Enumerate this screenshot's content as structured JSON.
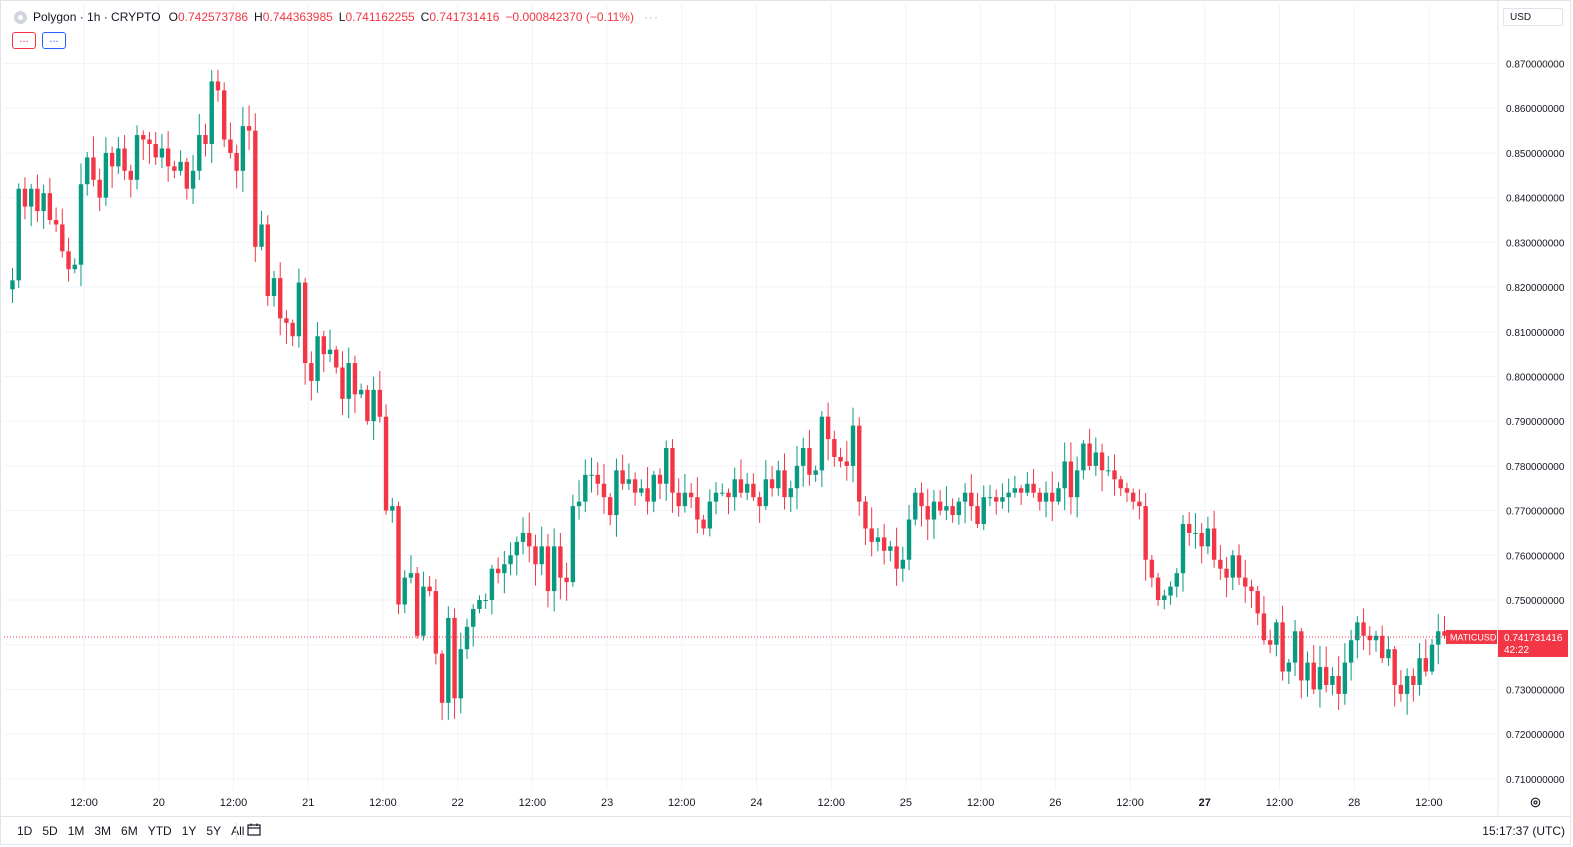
{
  "header": {
    "title": "Polygon · 1h · CRYPTO",
    "o_label": "O",
    "o_value": "0.742573786",
    "h_label": "H",
    "h_value": "0.744363985",
    "l_label": "L",
    "l_value": "0.741162255",
    "c_label": "C",
    "c_value": "0.741731416",
    "change": "−0.000842370 (−0.11%)",
    "more": "···"
  },
  "indicators": {
    "btn1": "...",
    "btn2": "...",
    "btn1_color": "#f23645",
    "btn2_color": "#2962ff"
  },
  "currency": "USD",
  "price_label": {
    "symbol": "MATICUSD",
    "price": "0.741731416",
    "countdown": "42:22",
    "color": "#f23645"
  },
  "time_ranges": [
    "1D",
    "5D",
    "1M",
    "3M",
    "6M",
    "YTD",
    "1Y",
    "5Y",
    "All"
  ],
  "clock": "15:17:37 (UTC)",
  "icons": {
    "calendar": "calendar-goto-icon",
    "settings": "settings-gear-icon",
    "symbol": "polygon-logo-icon"
  },
  "colors": {
    "up": "#089981",
    "down": "#f23645",
    "grid": "#f0f3fa"
  },
  "chart_data": {
    "type": "candlestick",
    "title": "Polygon · 1h · CRYPTO",
    "ylim": [
      0.7075,
      0.8775
    ],
    "y_ticks": [
      "0.710000000",
      "0.720000000",
      "0.730000000",
      "0.740000000",
      "0.750000000",
      "0.760000000",
      "0.770000000",
      "0.780000000",
      "0.790000000",
      "0.800000000",
      "0.810000000",
      "0.820000000",
      "0.830000000",
      "0.840000000",
      "0.850000000",
      "0.860000000",
      "0.870000000"
    ],
    "x_ticks": [
      {
        "label": "12:00",
        "hour": 11.5,
        "bold": false
      },
      {
        "label": "20",
        "hour": 23.5,
        "bold": false
      },
      {
        "label": "12:00",
        "hour": 35.5,
        "bold": false
      },
      {
        "label": "21",
        "hour": 47.5,
        "bold": false
      },
      {
        "label": "12:00",
        "hour": 59.5,
        "bold": false
      },
      {
        "label": "22",
        "hour": 71.5,
        "bold": false
      },
      {
        "label": "12:00",
        "hour": 83.5,
        "bold": false
      },
      {
        "label": "23",
        "hour": 95.5,
        "bold": false
      },
      {
        "label": "12:00",
        "hour": 107.5,
        "bold": false
      },
      {
        "label": "24",
        "hour": 119.5,
        "bold": false
      },
      {
        "label": "12:00",
        "hour": 131.5,
        "bold": false
      },
      {
        "label": "25",
        "hour": 143.5,
        "bold": false
      },
      {
        "label": "12:00",
        "hour": 155.5,
        "bold": false
      },
      {
        "label": "26",
        "hour": 167.5,
        "bold": false
      },
      {
        "label": "12:00",
        "hour": 179.5,
        "bold": false
      },
      {
        "label": "27",
        "hour": 191.5,
        "bold": true
      },
      {
        "label": "12:00",
        "hour": 203.5,
        "bold": false
      },
      {
        "label": "28",
        "hour": 215.5,
        "bold": false
      },
      {
        "label": "12:00",
        "hour": 227.5,
        "bold": false
      }
    ],
    "last_price": 0.741731416,
    "closes": [
      0.8215,
      0.842,
      0.838,
      0.842,
      0.837,
      0.841,
      0.835,
      0.834,
      0.828,
      0.824,
      0.825,
      0.843,
      0.849,
      0.844,
      0.84,
      0.85,
      0.847,
      0.851,
      0.846,
      0.844,
      0.854,
      0.853,
      0.852,
      0.849,
      0.851,
      0.847,
      0.846,
      0.848,
      0.842,
      0.846,
      0.854,
      0.852,
      0.866,
      0.864,
      0.853,
      0.85,
      0.846,
      0.856,
      0.855,
      0.829,
      0.834,
      0.818,
      0.822,
      0.813,
      0.812,
      0.809,
      0.821,
      0.803,
      0.799,
      0.809,
      0.805,
      0.806,
      0.802,
      0.795,
      0.803,
      0.796,
      0.797,
      0.79,
      0.797,
      0.791,
      0.77,
      0.771,
      0.749,
      0.755,
      0.756,
      0.742,
      0.753,
      0.752,
      0.738,
      0.727,
      0.746,
      0.728,
      0.739,
      0.744,
      0.748,
      0.75,
      0.75,
      0.757,
      0.756,
      0.758,
      0.76,
      0.763,
      0.765,
      0.762,
      0.758,
      0.762,
      0.752,
      0.762,
      0.755,
      0.754,
      0.771,
      0.772,
      0.778,
      0.778,
      0.776,
      0.773,
      0.769,
      0.779,
      0.776,
      0.777,
      0.774,
      0.775,
      0.772,
      0.778,
      0.776,
      0.784,
      0.774,
      0.771,
      0.774,
      0.773,
      0.768,
      0.766,
      0.772,
      0.774,
      0.774,
      0.773,
      0.777,
      0.774,
      0.776,
      0.773,
      0.771,
      0.777,
      0.775,
      0.779,
      0.773,
      0.775,
      0.78,
      0.784,
      0.778,
      0.779,
      0.791,
      0.786,
      0.782,
      0.781,
      0.78,
      0.789,
      0.772,
      0.766,
      0.763,
      0.764,
      0.761,
      0.762,
      0.757,
      0.759,
      0.768,
      0.774,
      0.771,
      0.768,
      0.772,
      0.77,
      0.771,
      0.769,
      0.772,
      0.774,
      0.771,
      0.767,
      0.773,
      0.773,
      0.772,
      0.773,
      0.774,
      0.775,
      0.774,
      0.776,
      0.774,
      0.772,
      0.774,
      0.772,
      0.775,
      0.781,
      0.773,
      0.779,
      0.785,
      0.78,
      0.783,
      0.779,
      0.779,
      0.777,
      0.775,
      0.774,
      0.772,
      0.771,
      0.759,
      0.755,
      0.75,
      0.751,
      0.753,
      0.756,
      0.767,
      0.765,
      0.765,
      0.762,
      0.766,
      0.759,
      0.757,
      0.755,
      0.76,
      0.755,
      0.753,
      0.752,
      0.747,
      0.741,
      0.74,
      0.745,
      0.734,
      0.736,
      0.743,
      0.732,
      0.736,
      0.73,
      0.735,
      0.731,
      0.733,
      0.729,
      0.736,
      0.741,
      0.745,
      0.742,
      0.741,
      0.742,
      0.737,
      0.739,
      0.731,
      0.729,
      0.733,
      0.731,
      0.737,
      0.734,
      0.74,
      0.743,
      0.742,
      0.7417314
    ]
  }
}
